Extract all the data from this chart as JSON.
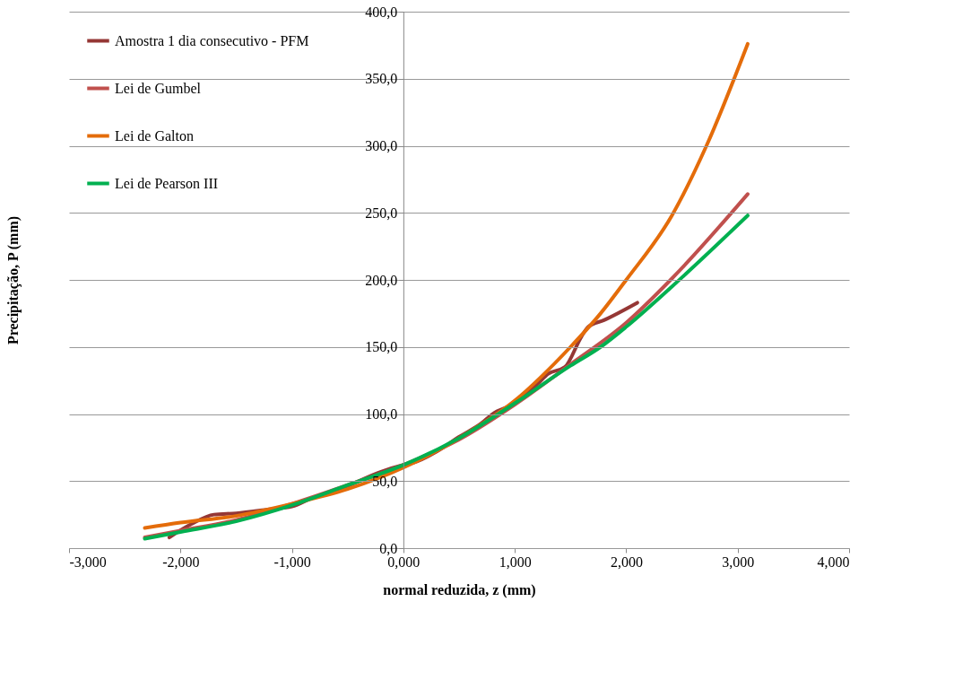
{
  "chart_data": {
    "type": "line",
    "xlabel": "normal reduzida, z (mm)",
    "ylabel": "Precipitação, P (mm)",
    "xlim": [
      -3,
      4
    ],
    "ylim": [
      0,
      400
    ],
    "xticks": [
      {
        "value": -3,
        "label": "-3,000"
      },
      {
        "value": -2,
        "label": "-2,000"
      },
      {
        "value": -1,
        "label": "-1,000"
      },
      {
        "value": 0,
        "label": "0,000"
      },
      {
        "value": 1,
        "label": "1,000"
      },
      {
        "value": 2,
        "label": "2,000"
      },
      {
        "value": 3,
        "label": "3,000"
      },
      {
        "value": 4,
        "label": "4,000"
      }
    ],
    "yticks": [
      {
        "value": 0,
        "label": "0,0"
      },
      {
        "value": 50,
        "label": "50,0"
      },
      {
        "value": 100,
        "label": "100,0"
      },
      {
        "value": 150,
        "label": "150,0"
      },
      {
        "value": 200,
        "label": "200,0"
      },
      {
        "value": 250,
        "label": "250,0"
      },
      {
        "value": 300,
        "label": "300,0"
      },
      {
        "value": 350,
        "label": "350,0"
      },
      {
        "value": 400,
        "label": "400,0"
      }
    ],
    "grid": "y",
    "legend": "top left",
    "marker": "none",
    "line_style": "solid",
    "series": [
      {
        "name": "Amostra 1 dia consecutivo - PFM",
        "color": "#953735",
        "x": [
          -2.1,
          -1.9,
          -1.7,
          -1.5,
          -1.2,
          -1.0,
          -0.8,
          -0.6,
          -0.2,
          0,
          0.1,
          0.3,
          0.5,
          0.7,
          0.8,
          1.0,
          1.2,
          1.3,
          1.45,
          1.6,
          1.66,
          1.8,
          2.1
        ],
        "values": [
          8,
          18,
          25,
          26,
          29,
          31,
          38,
          43,
          57,
          62,
          64,
          72,
          83,
          93,
          100,
          108,
          122,
          130,
          135,
          158,
          165,
          170,
          183
        ]
      },
      {
        "name": "Lei de Gumbel",
        "color": "#c0504d",
        "x": [
          -2.32,
          -2,
          -1.5,
          -1,
          -0.5,
          0,
          0.5,
          1,
          1.5,
          2,
          2.41,
          3.09
        ],
        "values": [
          8,
          13,
          21,
          33,
          47,
          62,
          81,
          107,
          137,
          168,
          201,
          264
        ]
      },
      {
        "name": "Lei de Galton",
        "color": "#e46c0a",
        "x": [
          -2.32,
          -2,
          -1.5,
          -1,
          -0.5,
          0,
          0.5,
          1,
          1.5,
          1.77,
          2,
          2.41,
          2.72,
          3.09
        ],
        "values": [
          15,
          19,
          24,
          33,
          44,
          60,
          82,
          110,
          150,
          175,
          200,
          248,
          300,
          376
        ]
      },
      {
        "name": "Lei de Pearson III",
        "color": "#00b050",
        "x": [
          -2.32,
          -2,
          -1.5,
          -1,
          -0.5,
          0,
          0.5,
          1,
          1.5,
          1.77,
          2,
          2.41,
          3.09
        ],
        "values": [
          7,
          12,
          20,
          32,
          47,
          62,
          82,
          108,
          136,
          150,
          165,
          195,
          248
        ]
      }
    ]
  }
}
